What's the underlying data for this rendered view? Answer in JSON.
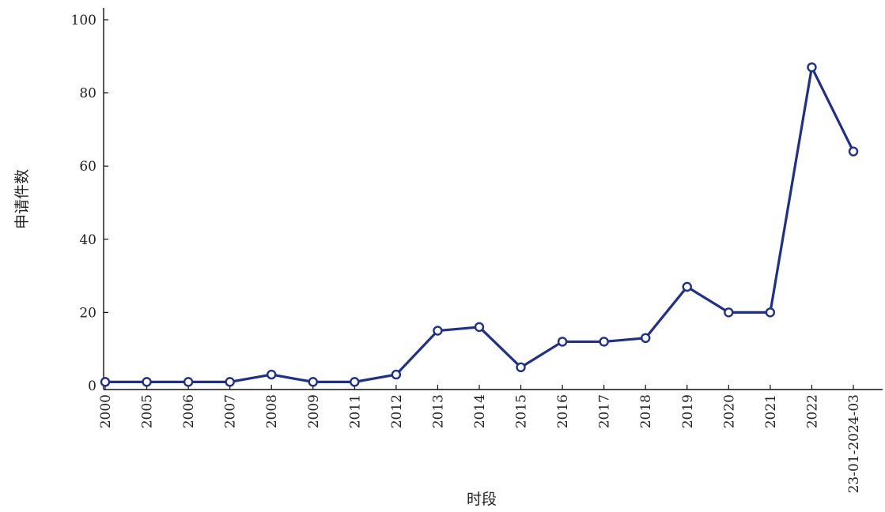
{
  "chart_data": {
    "type": "line",
    "title": "",
    "xlabel": "时段",
    "ylabel": "申请件数",
    "categories": [
      "2000",
      "2005",
      "2006",
      "2007",
      "2008",
      "2009",
      "2011",
      "2012",
      "2013",
      "2014",
      "2015",
      "2016",
      "2017",
      "2018",
      "2019",
      "2020",
      "2021",
      "2022",
      "23-01-2024-03"
    ],
    "series": [
      {
        "values": [
          1,
          1,
          1,
          1,
          3,
          1,
          1,
          3,
          15,
          16,
          5,
          12,
          12,
          13,
          27,
          20,
          20,
          87,
          64
        ]
      }
    ],
    "ylim": [
      0,
      100
    ],
    "yticks": [
      0,
      20,
      40,
      60,
      80,
      100
    ],
    "grid": false,
    "colors": {
      "line": "#1f2f8f",
      "marker_edge": "#1f2f8f",
      "marker_fill": "#ffffff"
    }
  }
}
